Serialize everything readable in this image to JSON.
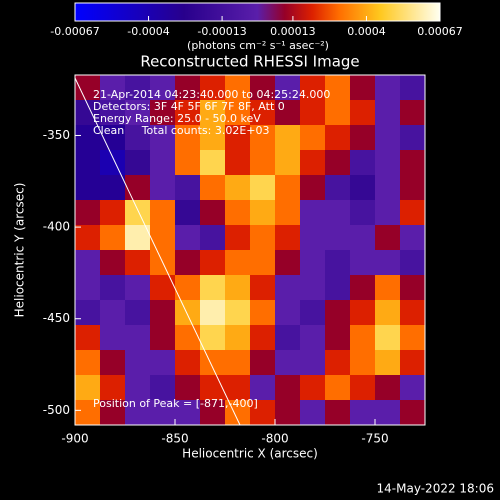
{
  "chart_data": {
    "type": "heatmap",
    "title": "Reconstructed RHESSI Image",
    "x_label": "Heliocentric X (arcsec)",
    "y_label": "Heliocentric Y (arcsec)",
    "colorbar_label": "(photons cm⁻² s⁻¹ asec⁻²)",
    "annotations": [
      "21-Apr-2014 04:23:40.000 to 04:25:24.000",
      "Detectors: 3F 4F 5F 6F 7F 8F, Att 0",
      "Energy Range: 25.0 - 50.0 keV",
      "Clean     Total counts: 3.02E+03"
    ],
    "peak_label": "Position of Peak = [-871,-400]",
    "timestamp": "14-May-2022 18:06",
    "xlim": [
      -900,
      -725
    ],
    "ylim": [
      -508,
      -317
    ],
    "xticks": [
      -900,
      -850,
      -800,
      -750
    ],
    "yticks": [
      -350,
      -400,
      -450,
      -500
    ],
    "clim": [
      -0.00067,
      0.00067
    ],
    "cticks": [
      -0.00067,
      -0.0004,
      -0.00013,
      0.00013,
      0.0004,
      0.00067
    ],
    "colorscale": [
      [
        -0.00067,
        "#0000ff"
      ],
      [
        -0.00027,
        "#28008c"
      ],
      [
        0,
        "#5a1eaa"
      ],
      [
        0.0001,
        "#960028"
      ],
      [
        0.0002,
        "#dc2000"
      ],
      [
        0.0003,
        "#ff6e00"
      ],
      [
        0.00045,
        "#ffc81e"
      ],
      [
        0.00067,
        "#fffff0"
      ]
    ],
    "z": [
      [
        0.0001,
        0,
        -0.0001,
        0,
        0.0001,
        0.0002,
        0.0003,
        0.0001,
        0,
        0.0002,
        0.0003,
        0.0001,
        0,
        -0.0001
      ],
      [
        -0.0002,
        -0.0001,
        0,
        0.0001,
        0.0002,
        0.0004,
        0.0003,
        0.0002,
        0.0001,
        0.0002,
        0.0003,
        0.0002,
        0,
        0.0001
      ],
      [
        -0.0003,
        -0.0003,
        -0.0001,
        0,
        0.0003,
        0.0004,
        0.0002,
        0.0003,
        0.0004,
        0.0003,
        0.0002,
        0.0001,
        0,
        -0.0001
      ],
      [
        -0.0003,
        -0.0004,
        -0.0002,
        0,
        0.0003,
        0.0005,
        0.0002,
        0.0003,
        0.0004,
        0.0002,
        0.0001,
        -0.0001,
        0,
        0.0001
      ],
      [
        -0.0003,
        -0.0003,
        0.0001,
        0,
        -0.0001,
        0.0003,
        0.0004,
        0.0005,
        0.0003,
        0.0001,
        -0.0001,
        -0.0002,
        0,
        0.0001
      ],
      [
        0.0001,
        0.0002,
        0.0005,
        0.0003,
        -0.0002,
        0.0001,
        0.0003,
        0.0004,
        0.0003,
        0,
        0,
        -0.0001,
        0,
        0.0002
      ],
      [
        0.0002,
        0.0003,
        0.0006,
        0.0003,
        0,
        -0.0001,
        0.0002,
        0.0003,
        0.0002,
        0,
        0,
        0,
        0.0001,
        0
      ],
      [
        0,
        0.0001,
        0.0002,
        0.0003,
        0.0001,
        0.0002,
        0.0003,
        0.0003,
        0.0001,
        0,
        -0.0001,
        0,
        0,
        -0.0001
      ],
      [
        0,
        -0.0001,
        0,
        0.0002,
        0.0003,
        0.0005,
        0.0004,
        0.0002,
        0,
        0,
        -0.0001,
        0.0001,
        0.0003,
        0.0001
      ],
      [
        -0.0001,
        0,
        -0.0001,
        0.0001,
        0.0004,
        0.0006,
        0.0005,
        0.0003,
        0,
        -0.0001,
        0.0001,
        0.0002,
        0.0004,
        0.0002
      ],
      [
        0.0002,
        0,
        0,
        0.0001,
        0.0003,
        0.0005,
        0.0004,
        0.0002,
        -0.0001,
        0,
        0.0001,
        0.0003,
        0.0005,
        0.0003
      ],
      [
        0.0003,
        0.0001,
        0,
        0,
        0.0002,
        0.0003,
        0.0003,
        0.0001,
        0,
        0,
        0.0002,
        0.0003,
        0.0004,
        0.0002
      ],
      [
        0.0004,
        0.0002,
        0,
        -0.0001,
        0.0001,
        0.0002,
        0.0002,
        0,
        0.0001,
        0.0002,
        0.0003,
        0.0002,
        0.0001,
        0
      ],
      [
        0.0003,
        0.0001,
        0,
        0,
        0,
        0.0001,
        0.0003,
        0.0002,
        0.0001,
        0,
        0.0001,
        0,
        0,
        0.0001
      ]
    ]
  }
}
